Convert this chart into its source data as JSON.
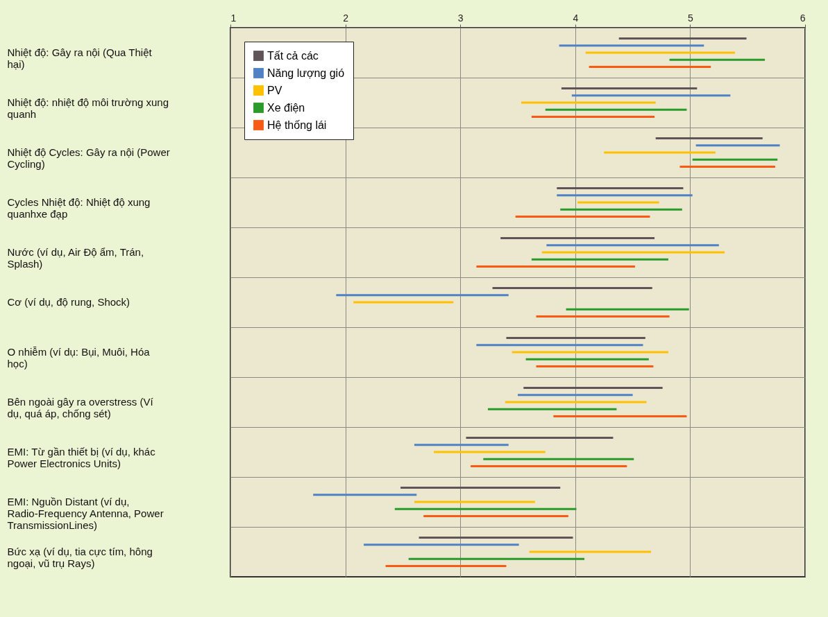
{
  "chart_data": {
    "type": "bar",
    "orientation": "horizontal",
    "categories": [
      "Nhiệt độ: Gây ra nội (Qua Thiệt hại)",
      "Nhiệt độ: nhiệt độ môi trường xung quanh",
      "Nhiệt độ Cycles: Gây ra nội (Power Cycling)",
      "Cycles Nhiệt độ: Nhiệt độ xung quanhxe đạp",
      "Nước (ví dụ, Air Độ ẩm, Trán, Splash)",
      "Cơ (ví dụ, độ rung, Shock)",
      "O nhiễm (ví dụ: Bụi, Muôi, Hóa học)",
      "Bên ngoài gây ra overstress (Ví dụ, quá áp, chống sét)",
      "EMI: Từ gần thiết bị (ví dụ, khác Power Electronics Units)",
      "EMI: Nguồn Distant (ví dụ, Radio-Frequency Antenna, Power TransmissionLines)",
      "Bức xạ (ví dụ, tia cực tím, hông ngoại, vũ trụ Rays)"
    ],
    "series": [
      {
        "name": "Tất cả các",
        "color": "#5f5558",
        "base": [
          4.38,
          3.88,
          4.7,
          3.84,
          3.35,
          3.28,
          3.4,
          3.55,
          3.05,
          2.48,
          2.64
        ],
        "values": [
          1.11,
          1.18,
          0.93,
          1.1,
          1.34,
          1.39,
          1.21,
          1.21,
          1.28,
          1.39,
          1.34
        ]
      },
      {
        "name": "Năng lượng gió",
        "color": "#4f81c4",
        "base": [
          3.86,
          3.97,
          5.05,
          3.84,
          3.75,
          1.92,
          3.14,
          3.5,
          2.6,
          1.72,
          2.16
        ],
        "values": [
          1.26,
          1.38,
          0.73,
          1.18,
          1.5,
          1.5,
          1.45,
          1.0,
          0.82,
          0.9,
          1.35
        ]
      },
      {
        "name": "PV",
        "color": "#ffc000",
        "base": [
          4.09,
          3.53,
          4.25,
          4.02,
          3.71,
          2.07,
          3.45,
          3.39,
          2.77,
          2.6,
          3.6
        ],
        "values": [
          1.3,
          1.17,
          0.97,
          0.71,
          1.59,
          0.87,
          1.36,
          1.23,
          0.97,
          1.05,
          1.06
        ]
      },
      {
        "name": "Xe điện",
        "color": "#2a9a2a",
        "base": [
          4.82,
          3.74,
          5.02,
          3.87,
          3.62,
          3.92,
          3.57,
          3.24,
          3.2,
          2.43,
          2.55
        ],
        "values": [
          0.83,
          1.23,
          0.74,
          1.06,
          1.19,
          1.07,
          1.07,
          1.12,
          1.31,
          1.58,
          1.53
        ]
      },
      {
        "name": "Hệ thống lái",
        "color": "#f85a14",
        "base": [
          4.12,
          3.62,
          4.91,
          3.48,
          3.14,
          3.66,
          3.66,
          3.81,
          3.09,
          2.68,
          2.35
        ],
        "values": [
          1.06,
          1.07,
          0.83,
          1.17,
          1.38,
          1.16,
          1.02,
          1.16,
          1.36,
          1.26,
          1.05
        ]
      }
    ],
    "xlim": [
      1,
      6
    ],
    "xticks": [
      1,
      2,
      3,
      4,
      5,
      6
    ],
    "grid": true,
    "legend": "top left"
  }
}
